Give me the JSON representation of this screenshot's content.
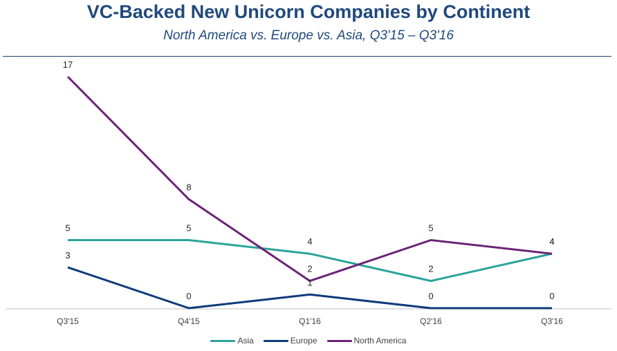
{
  "header": {
    "title": "VC-Backed New Unicorn Companies by Continent",
    "subtitle": "North America vs. Europe vs. Asia, Q3'15 – Q3'16"
  },
  "chart_data": {
    "type": "line",
    "title": "VC-Backed New Unicorn Companies by Continent",
    "subtitle": "North America vs. Europe vs. Asia, Q3'15 – Q3'16",
    "categories": [
      "Q3'15",
      "Q4'15",
      "Q1'16",
      "Q2'16",
      "Q3'16"
    ],
    "ylim": [
      0,
      17
    ],
    "grid": false,
    "legend_position": "bottom",
    "xlabel": "",
    "ylabel": "",
    "series": [
      {
        "name": "Asia",
        "color": "#2aa39a",
        "values": [
          5,
          5,
          4,
          2,
          4
        ]
      },
      {
        "name": "Europe",
        "color": "#0d3a7a",
        "values": [
          3,
          0,
          1,
          0,
          0
        ]
      },
      {
        "name": "North America",
        "color": "#6b2376",
        "values": [
          17,
          8,
          2,
          5,
          4
        ]
      }
    ]
  }
}
